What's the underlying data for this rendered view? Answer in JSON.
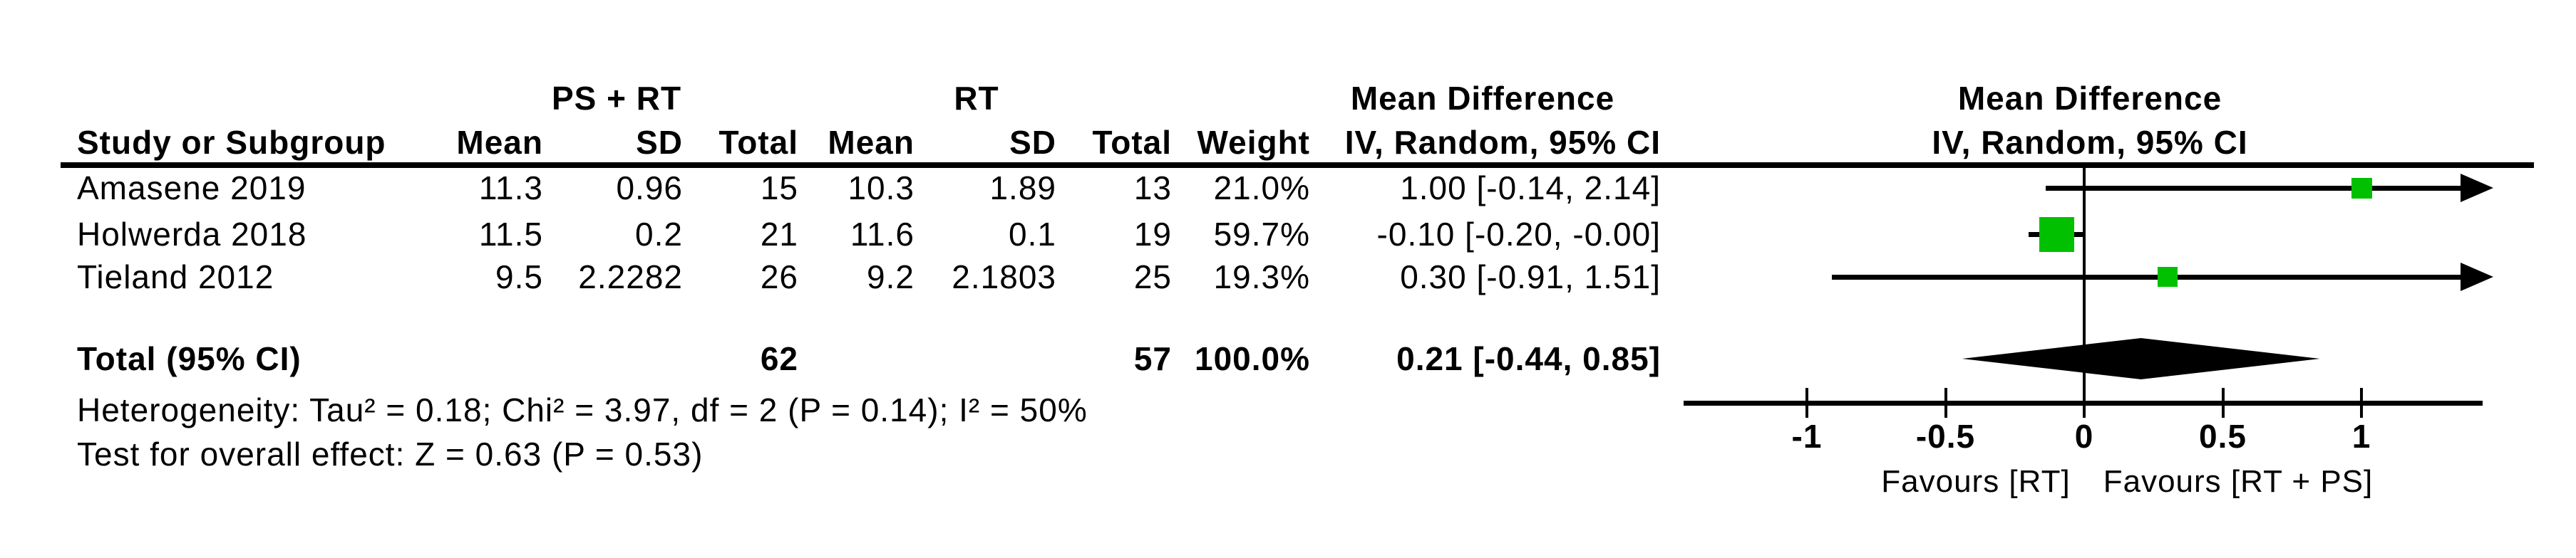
{
  "figure": {
    "groups": {
      "group1": "PS + RT",
      "group2": "RT",
      "effect_col_title": "Mean Difference",
      "effect_col_subtitle": "IV, Random, 95% CI",
      "plot_title": "Mean Difference",
      "plot_subtitle": "IV, Random, 95% CI"
    },
    "columns": {
      "study": "Study or Subgroup",
      "mean1": "Mean",
      "sd1": "SD",
      "total1": "Total",
      "mean2": "Mean",
      "sd2": "SD",
      "total2": "Total",
      "weight": "Weight",
      "ci": "IV, Random, 95% CI"
    },
    "rows": [
      {
        "study": "Amasene 2019",
        "mean1": "11.3",
        "sd1": "0.96",
        "total1": "15",
        "mean2": "10.3",
        "sd2": "1.89",
        "total2": "13",
        "weight": "21.0%",
        "ci": "1.00 [-0.14, 2.14]"
      },
      {
        "study": "Holwerda 2018",
        "mean1": "11.5",
        "sd1": "0.2",
        "total1": "21",
        "mean2": "11.6",
        "sd2": "0.1",
        "total2": "19",
        "weight": "59.7%",
        "ci": "-0.10 [-0.20, -0.00]"
      },
      {
        "study": "Tieland 2012",
        "mean1": "9.5",
        "sd1": "2.2282",
        "total1": "26",
        "mean2": "9.2",
        "sd2": "2.1803",
        "total2": "25",
        "weight": "19.3%",
        "ci": "0.30 [-0.91, 1.51]"
      }
    ],
    "total_row": {
      "label": "Total (95% CI)",
      "total1": "62",
      "total2": "57",
      "weight": "100.0%",
      "ci": "0.21 [-0.44, 0.85]"
    },
    "heterogeneity": "Heterogeneity: Tau² = 0.18; Chi² = 3.97, df = 2 (P = 0.14); I² = 50%",
    "overall_effect": "Test for overall effect: Z = 0.63 (P = 0.53)"
  },
  "chart_data": {
    "type": "forest",
    "title": "Mean Difference",
    "subtitle": "IV, Random, 95% CI",
    "axis": {
      "min": -1.4,
      "max": 1.45,
      "ticks": [
        -1,
        -0.5,
        0,
        0.5,
        1
      ],
      "tick_labels": [
        "-1",
        "-0.5",
        "0",
        "0.5",
        "1"
      ]
    },
    "favours_left": "Favours [RT]",
    "favours_right": "Favours [RT + PS]",
    "studies": [
      {
        "name": "Amasene 2019",
        "md": 1.0,
        "ci_low": -0.14,
        "ci_high": 2.14,
        "weight_pct": 21.0
      },
      {
        "name": "Holwerda 2018",
        "md": -0.1,
        "ci_low": -0.2,
        "ci_high": -0.0,
        "weight_pct": 59.7
      },
      {
        "name": "Tieland 2012",
        "md": 0.3,
        "ci_low": -0.91,
        "ci_high": 1.51,
        "weight_pct": 19.3
      }
    ],
    "total": {
      "md": 0.21,
      "ci_low": -0.44,
      "ci_high": 0.85
    },
    "marker_color": "#00c000",
    "diamond_color": "#000000",
    "line_color": "#000000"
  }
}
